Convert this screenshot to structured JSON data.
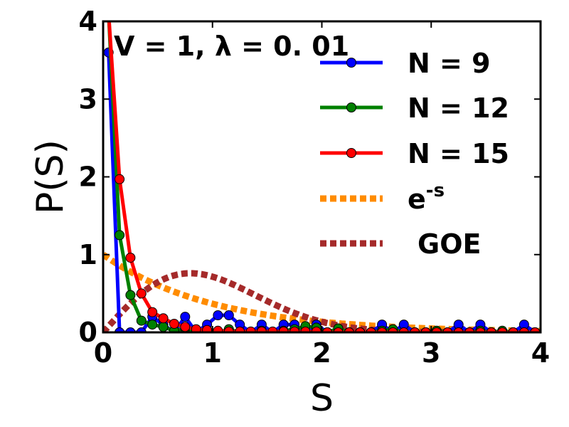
{
  "chart_data": {
    "type": "line",
    "annotation": "V = 1, λ = 0. 01",
    "xlabel": "S",
    "ylabel": "P(S)",
    "xlim": [
      0,
      4
    ],
    "ylim": [
      0,
      4
    ],
    "xticks": [
      "0",
      "1",
      "2",
      "3",
      "4"
    ],
    "yticks": [
      "0",
      "1",
      "2",
      "3",
      "4"
    ],
    "grid": false,
    "legend_position": "upper-right",
    "series": [
      {
        "name": "N = 9",
        "color": "#0000ff",
        "style": "line-markers",
        "x": [
          0.05,
          0.15,
          0.25,
          0.35,
          0.45,
          0.55,
          0.65,
          0.75,
          0.85,
          0.95,
          1.05,
          1.15,
          1.25,
          1.35,
          1.45,
          1.55,
          1.65,
          1.75,
          1.85,
          1.95,
          2.05,
          2.15,
          2.25,
          2.35,
          2.45,
          2.55,
          2.65,
          2.75,
          2.85,
          2.95,
          3.05,
          3.15,
          3.25,
          3.35,
          3.45,
          3.55,
          3.65,
          3.75,
          3.85,
          3.95
        ],
        "y": [
          3.6,
          0.0,
          0.0,
          0.0,
          0.2,
          0.1,
          0.0,
          0.2,
          0.0,
          0.1,
          0.22,
          0.22,
          0.1,
          0.0,
          0.1,
          0.0,
          0.1,
          0.1,
          0.0,
          0.1,
          0.0,
          0.0,
          0.0,
          0.0,
          0.0,
          0.1,
          0.0,
          0.1,
          0.0,
          0.0,
          0.0,
          0.0,
          0.1,
          0.0,
          0.1,
          0.0,
          0.0,
          0.0,
          0.1,
          0.0
        ]
      },
      {
        "name": "N = 12",
        "color": "#008000",
        "style": "line-markers",
        "x": [
          0.05,
          0.15,
          0.25,
          0.35,
          0.45,
          0.55,
          0.65,
          0.75,
          0.85,
          0.95,
          1.05,
          1.15,
          1.25,
          1.35,
          1.45,
          1.55,
          1.65,
          1.75,
          1.85,
          1.95,
          2.05,
          2.15,
          2.25,
          2.35,
          2.45,
          2.55,
          2.65,
          2.75,
          2.85,
          2.95,
          3.05,
          3.15,
          3.25,
          3.35,
          3.45,
          3.55,
          3.65,
          3.75,
          3.85,
          3.95
        ],
        "y": [
          4.1,
          1.25,
          0.48,
          0.15,
          0.1,
          0.07,
          0.02,
          0.05,
          0.0,
          0.01,
          0.0,
          0.04,
          0.0,
          0.0,
          0.02,
          0.0,
          0.02,
          0.04,
          0.08,
          0.06,
          0.0,
          0.05,
          0.0,
          0.0,
          0.0,
          0.02,
          0.04,
          0.0,
          0.0,
          0.0,
          0.02,
          0.0,
          0.0,
          0.0,
          0.02,
          0.0,
          0.02,
          0.0,
          0.0,
          0.0
        ]
      },
      {
        "name": "N = 15",
        "color": "#ff0000",
        "style": "line-markers",
        "x": [
          0.05,
          0.15,
          0.25,
          0.35,
          0.45,
          0.55,
          0.65,
          0.75,
          0.85,
          0.95,
          1.05,
          1.15,
          1.25,
          1.35,
          1.45,
          1.55,
          1.65,
          1.75,
          1.85,
          1.95,
          2.05,
          2.15,
          2.25,
          2.35,
          2.45,
          2.55,
          2.65,
          2.75,
          2.85,
          2.95,
          3.05,
          3.15,
          3.25,
          3.35,
          3.45,
          3.55,
          3.65,
          3.75,
          3.85,
          3.95
        ],
        "y": [
          4.1,
          1.97,
          0.96,
          0.5,
          0.26,
          0.18,
          0.11,
          0.07,
          0.04,
          0.03,
          0.02,
          0.01,
          0.01,
          0.01,
          0.01,
          0.01,
          0.01,
          0.01,
          0.01,
          0.01,
          0.0,
          0.0,
          0.0,
          0.0,
          0.0,
          0.0,
          0.0,
          0.0,
          0.0,
          0.0,
          0.0,
          0.0,
          0.0,
          0.0,
          0.0,
          0.0,
          0.0,
          0.0,
          0.0,
          0.0
        ]
      },
      {
        "name": "e-s",
        "label_base": "e",
        "label_sup": "-s",
        "color": "#ff8c00",
        "style": "dotted",
        "function": "exp(-s)"
      },
      {
        "name": "GOE",
        "color": "#a52a2a",
        "style": "dotted",
        "function": "(pi/2) s exp(-pi s^2 / 4)"
      }
    ]
  }
}
